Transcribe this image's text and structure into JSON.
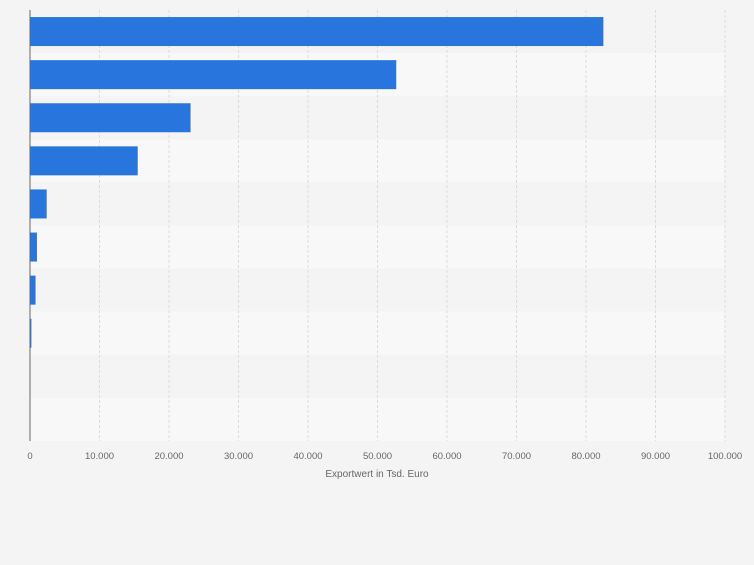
{
  "chart_data": {
    "type": "bar",
    "orientation": "horizontal",
    "title": "",
    "xlabel": "Exportwert in Tsd. Euro",
    "ylabel": "",
    "xlim": [
      0,
      100000
    ],
    "tick_values": [
      0,
      10000,
      20000,
      30000,
      40000,
      50000,
      60000,
      70000,
      80000,
      90000,
      100000
    ],
    "tick_labels": [
      "0",
      "10.000",
      "20.000",
      "30.000",
      "40.000",
      "50.000",
      "60.000",
      "70.000",
      "80.000",
      "90.000",
      "100.000"
    ],
    "categories": [
      "",
      "",
      "",
      "",
      "",
      "",
      "",
      "",
      "",
      ""
    ],
    "values": [
      82500,
      52700,
      23100,
      15500,
      2400,
      1000,
      800,
      200,
      0,
      0
    ],
    "grid": true,
    "legend": "none",
    "colors": {
      "bar": "#2876dd",
      "row_band_odd": "#f4f4f4",
      "row_band_even": "#f8f8f8",
      "grid": "#dcdcdc",
      "axis": "#666666",
      "label_text": "#666666"
    }
  }
}
